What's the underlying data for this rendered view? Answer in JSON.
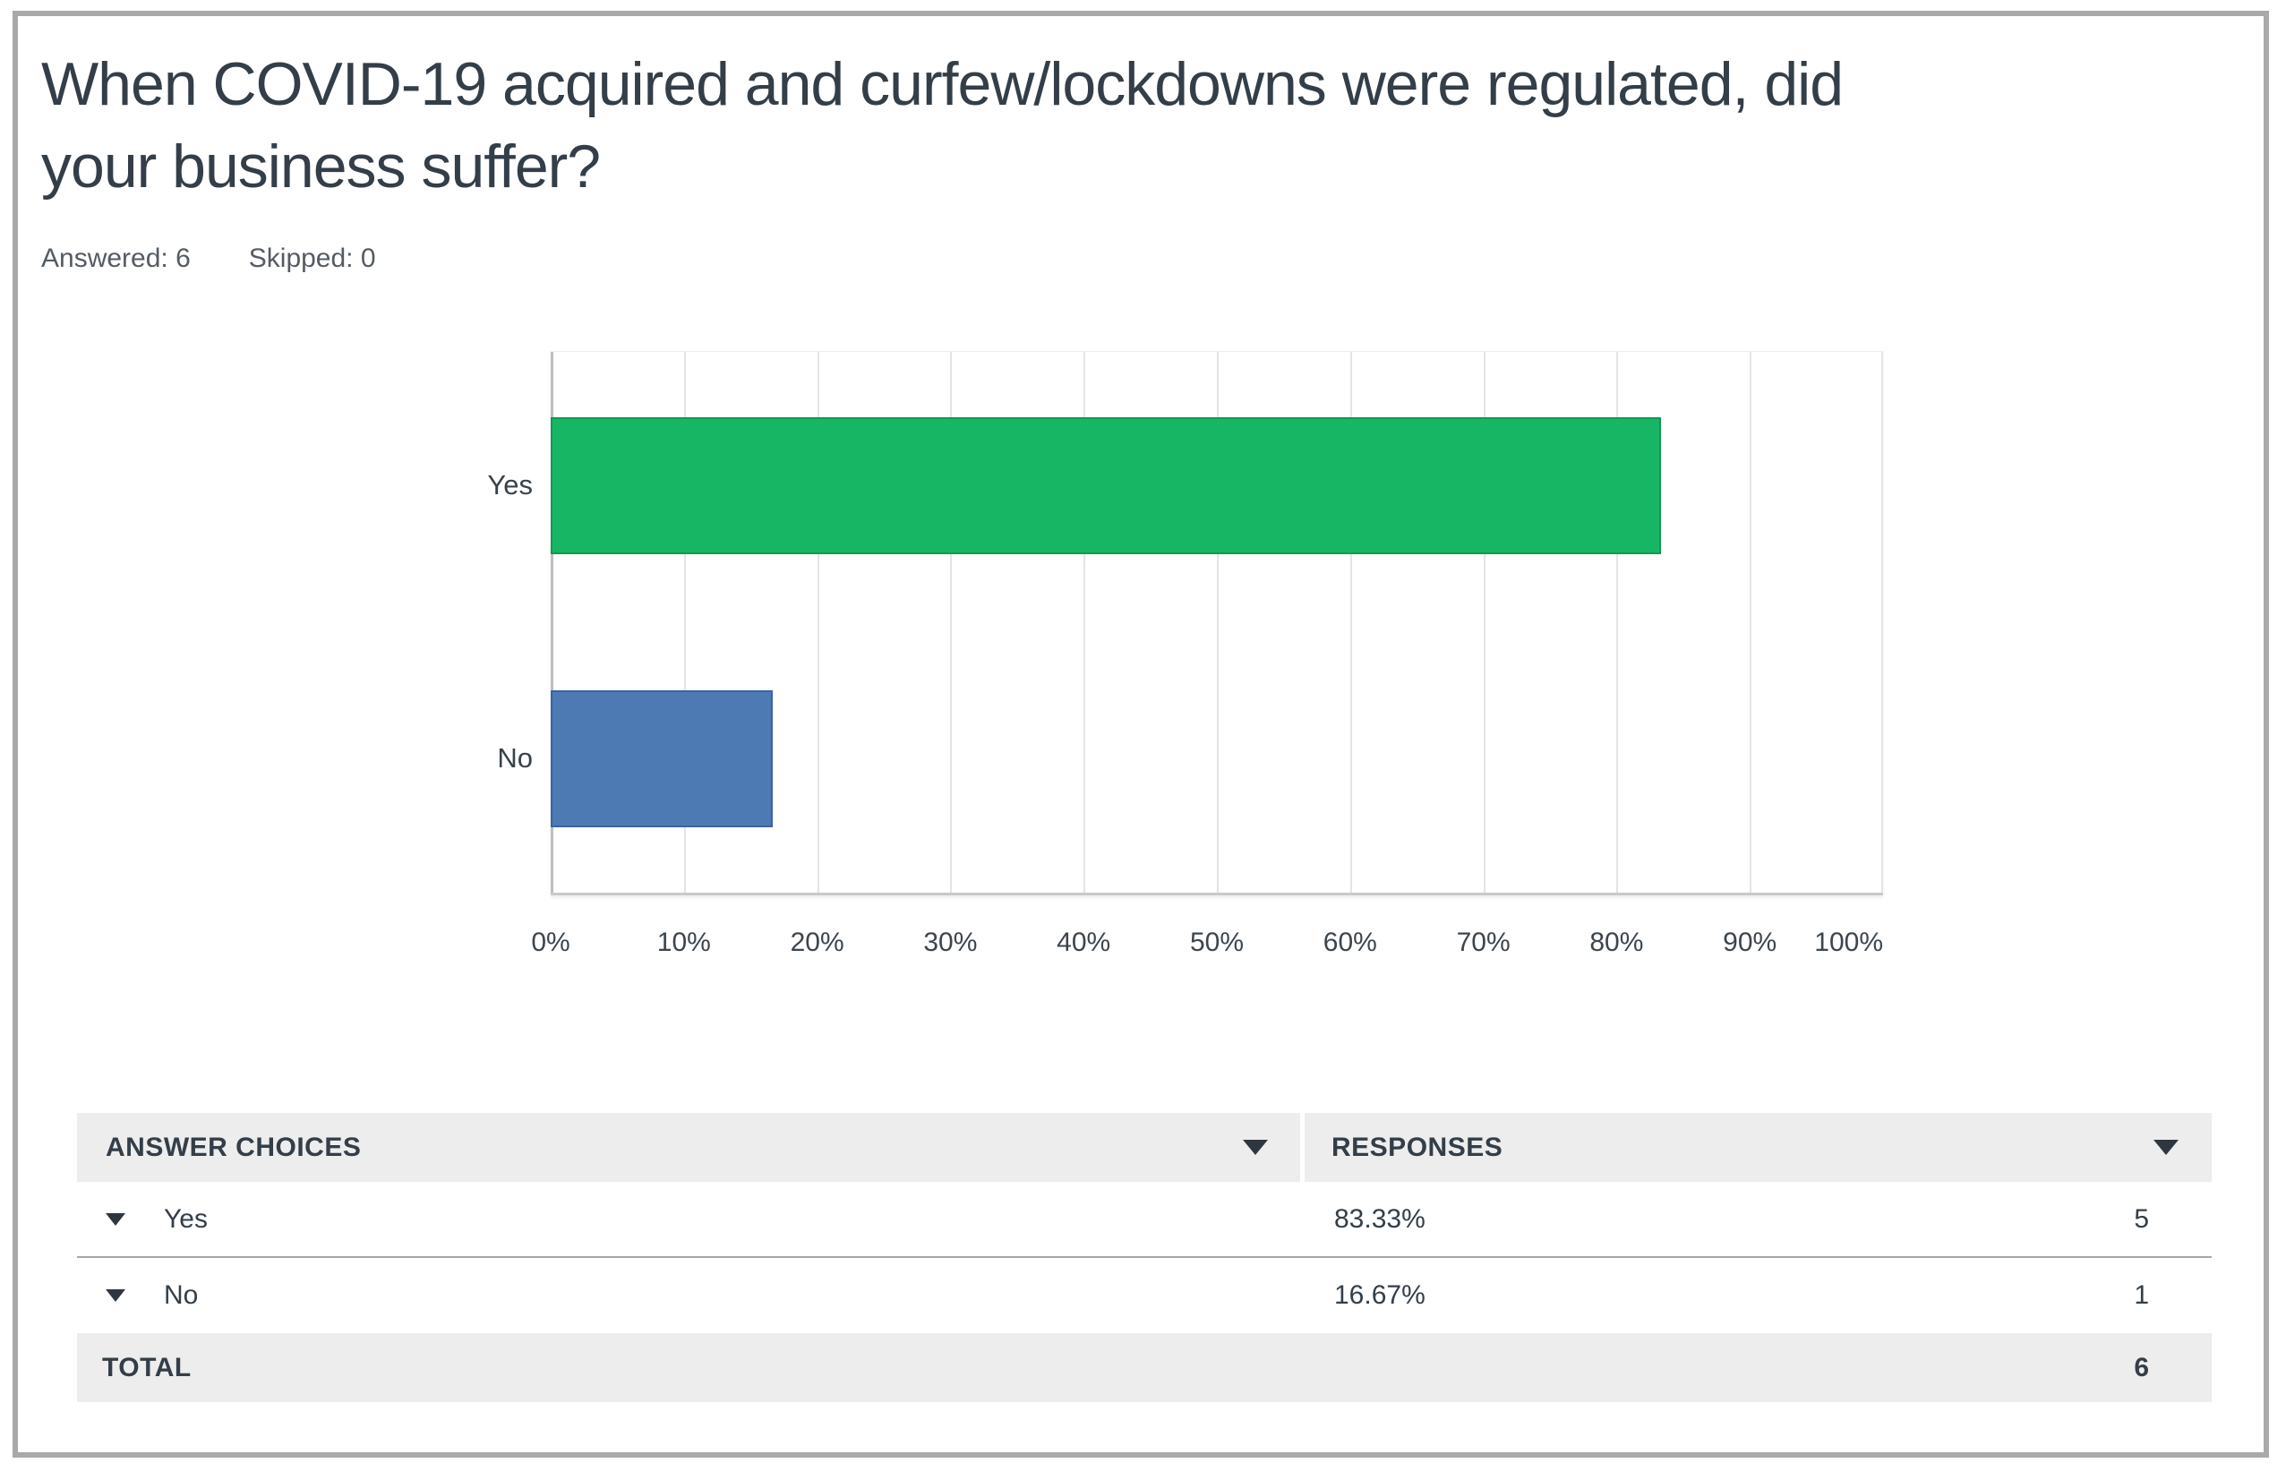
{
  "page": {
    "title": "When COVID-19 acquired and curfew/lockdowns were regulated, did your business suffer?",
    "title_lines": [
      "When COVID-19 acquired and curfew/lockdowns were regulated, did",
      "your business suffer?"
    ],
    "answered_label": "Answered: 6",
    "skipped_label": "Skipped: 0"
  },
  "chart_data": {
    "type": "bar",
    "orientation": "horizontal",
    "title": "When COVID-19 acquired and curfew/lockdowns were regulated, did your business suffer?",
    "categories": [
      "Yes",
      "No"
    ],
    "values": [
      83.33,
      16.67
    ],
    "counts": [
      5,
      1
    ],
    "unit": "%",
    "xlim": [
      0,
      100
    ],
    "tick_labels": [
      "0%",
      "10%",
      "20%",
      "30%",
      "40%",
      "50%",
      "60%",
      "70%",
      "80%",
      "90%",
      "100%"
    ],
    "grid": true,
    "legend": "none",
    "bar_colors": [
      "#17b665",
      "#4e7ab4"
    ]
  },
  "table": {
    "headers": {
      "answer_choices": "ANSWER CHOICES",
      "responses": "RESPONSES"
    },
    "rows": [
      {
        "choice": "Yes",
        "percent": "83.33%",
        "count": "5"
      },
      {
        "choice": "No",
        "percent": "16.67%",
        "count": "1"
      }
    ],
    "total_label": "TOTAL",
    "total_count": "6"
  },
  "colors": {
    "bar_yes": "#17b665",
    "bar_no": "#4e7ab4",
    "header_bg": "#ededed",
    "total_bg": "#ededed",
    "frame_border": "#a9a9a9",
    "text_dark": "#333e48",
    "text_gray": "#545b63",
    "gridline": "#e4e4e4"
  }
}
